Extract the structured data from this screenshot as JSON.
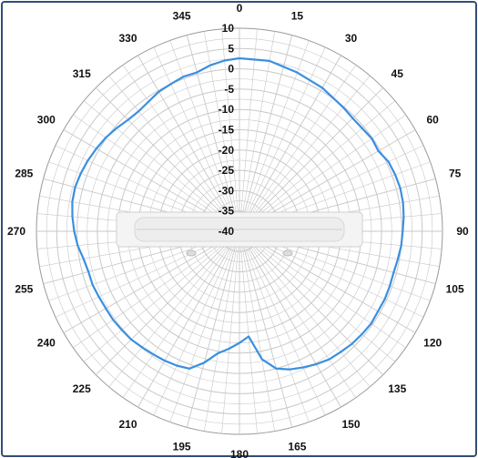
{
  "chart_data": {
    "type": "polar",
    "title": "",
    "angular_ticks": [
      "0",
      "15",
      "30",
      "45",
      "60",
      "75",
      "90",
      "105",
      "120",
      "135",
      "150",
      "165",
      "180",
      "195",
      "210",
      "225",
      "240",
      "255",
      "270",
      "285",
      "300",
      "315",
      "330",
      "345"
    ],
    "radial_ticks": [
      "10",
      "5",
      "0",
      "-5",
      "-10",
      "-15",
      "-20",
      "-25",
      "-30",
      "-35",
      "-40"
    ],
    "r_range": [
      -40,
      10
    ],
    "grid": true,
    "series": [
      {
        "color": "#3a8fe0",
        "points": [
          [
            0,
            2.6
          ],
          [
            10,
            2.6
          ],
          [
            20,
            1.6
          ],
          [
            30,
            0.8
          ],
          [
            40,
            -0.2
          ],
          [
            45,
            -0.6
          ],
          [
            55,
            -0.2
          ],
          [
            60,
            -0.5
          ],
          [
            65,
            0.5
          ],
          [
            70,
            0.8
          ],
          [
            75,
            1.0
          ],
          [
            80,
            0.9
          ],
          [
            85,
            0.6
          ],
          [
            90,
            0.2
          ],
          [
            95,
            0.0
          ],
          [
            100,
            -0.4
          ],
          [
            105,
            -0.7
          ],
          [
            110,
            -0.6
          ],
          [
            115,
            -0.5
          ],
          [
            120,
            -0.6
          ],
          [
            125,
            -0.4
          ],
          [
            130,
            -0.6
          ],
          [
            135,
            -0.8
          ],
          [
            140,
            -1.2
          ],
          [
            145,
            -1.5
          ],
          [
            150,
            -2.2
          ],
          [
            155,
            -3.0
          ],
          [
            160,
            -3.8
          ],
          [
            165,
            -5.0
          ],
          [
            170,
            -8.0
          ],
          [
            175,
            -14.0
          ],
          [
            180,
            -12.5
          ],
          [
            185,
            -11.0
          ],
          [
            190,
            -9.5
          ],
          [
            195,
            -6.5
          ],
          [
            200,
            -4.0
          ],
          [
            205,
            -3.5
          ],
          [
            210,
            -3.2
          ],
          [
            215,
            -3.0
          ],
          [
            220,
            -2.7
          ],
          [
            225,
            -2.3
          ],
          [
            230,
            -2.2
          ],
          [
            235,
            -2.0
          ],
          [
            240,
            -2.0
          ],
          [
            245,
            -1.8
          ],
          [
            250,
            -1.5
          ],
          [
            255,
            -1.5
          ],
          [
            260,
            -1.0
          ],
          [
            265,
            0.0
          ],
          [
            270,
            0.7
          ],
          [
            275,
            1.3
          ],
          [
            280,
            1.8
          ],
          [
            285,
            1.9
          ],
          [
            290,
            1.6
          ],
          [
            295,
            1.2
          ],
          [
            300,
            0.7
          ],
          [
            305,
            0.2
          ],
          [
            310,
            -0.5
          ],
          [
            315,
            -1.2
          ],
          [
            320,
            -1.4
          ],
          [
            325,
            -1.0
          ],
          [
            330,
            -0.3
          ],
          [
            335,
            0.0
          ],
          [
            340,
            0.5
          ],
          [
            345,
            0.5
          ],
          [
            350,
            1.5
          ],
          [
            355,
            2.2
          ],
          [
            360,
            2.6
          ]
        ]
      }
    ]
  },
  "colors": {
    "frame": "#2f4f7a",
    "grid": "#c8c8c8",
    "trace": "#3a8fe0"
  }
}
